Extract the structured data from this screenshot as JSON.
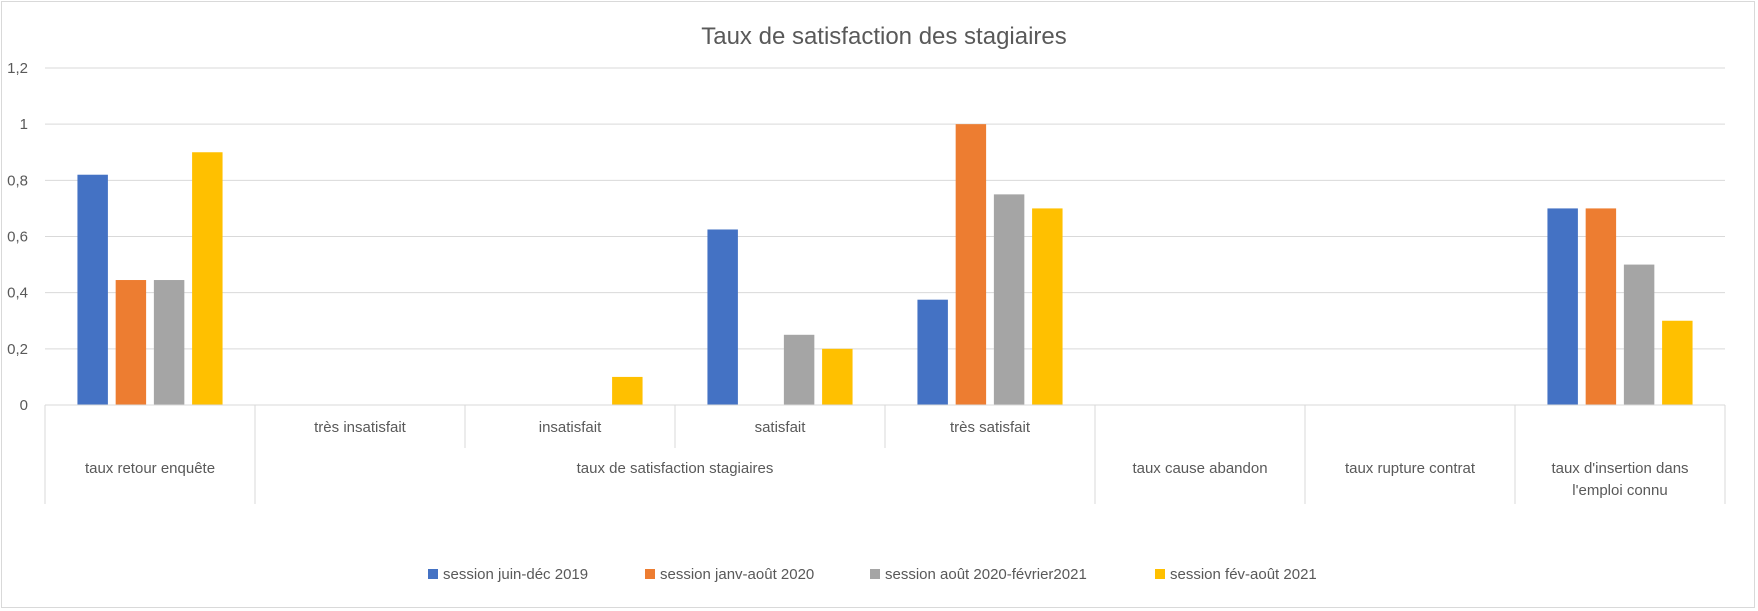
{
  "chart_data": {
    "type": "bar",
    "title": "Taux de satisfaction des stagiaires",
    "xlabel": "",
    "ylabel": "",
    "ylim": [
      0,
      1.2
    ],
    "y_ticks": [
      "0",
      "0,2",
      "0,4",
      "0,6",
      "0,8",
      "1",
      "1,2"
    ],
    "grid": true,
    "legend_position": "bottom",
    "categories": [
      {
        "label": "",
        "group": "taux retour enquête"
      },
      {
        "label": "très insatisfait",
        "group": "taux de satisfaction stagiaires"
      },
      {
        "label": "insatisfait",
        "group": "taux de satisfaction stagiaires"
      },
      {
        "label": "satisfait",
        "group": "taux de satisfaction stagiaires"
      },
      {
        "label": "très satisfait",
        "group": "taux de satisfaction stagiaires"
      },
      {
        "label": "",
        "group": "taux cause abandon"
      },
      {
        "label": "",
        "group": "taux rupture contrat"
      },
      {
        "label": "",
        "group": "taux d'insertion dans l'emploi connu"
      }
    ],
    "groups": [
      {
        "label": "taux retour enquête"
      },
      {
        "label": "taux de satisfaction stagiaires"
      },
      {
        "label": "taux cause abandon"
      },
      {
        "label": "taux rupture contrat"
      },
      {
        "label": "taux d'insertion dans l'emploi connu",
        "lines": [
          "taux d'insertion dans",
          "l'emploi connu"
        ]
      }
    ],
    "series": [
      {
        "name": "session juin-déc 2019",
        "color": "#4472c4",
        "values": [
          0.82,
          0,
          0,
          0.625,
          0.375,
          0,
          0,
          0.7
        ]
      },
      {
        "name": "session janv-août 2020",
        "color": "#ed7d31",
        "values": [
          0.445,
          0,
          0,
          0,
          1.0,
          0,
          0,
          0.7
        ]
      },
      {
        "name": "session août 2020-février2021",
        "color": "#a5a5a5",
        "values": [
          0.445,
          0,
          0,
          0.25,
          0.75,
          0,
          0,
          0.5
        ]
      },
      {
        "name": "session fév-août 2021",
        "color": "#ffc000",
        "values": [
          0.9,
          0,
          0.1,
          0.2,
          0.7,
          0,
          0,
          0.3
        ]
      }
    ]
  }
}
